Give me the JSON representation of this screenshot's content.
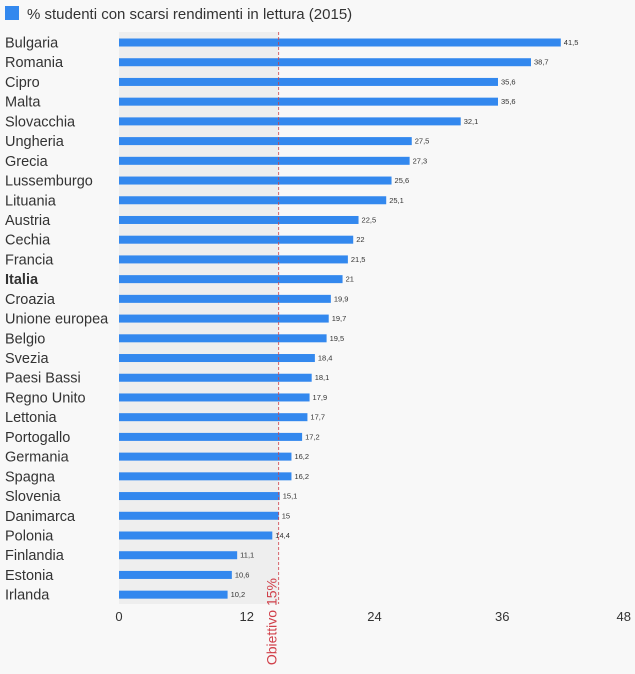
{
  "chart_data": {
    "type": "bar",
    "orientation": "horizontal",
    "legend": {
      "label": "% studenti con scarsi rendimenti in lettura (2015)",
      "color": "#3388ee",
      "placement": "top-left"
    },
    "categories": [
      "Bulgaria",
      "Romania",
      "Cipro",
      "Malta",
      "Slovacchia",
      "Ungheria",
      "Grecia",
      "Lussemburgo",
      "Lituania",
      "Austria",
      "Cechia",
      "Francia",
      "Italia",
      "Croazia",
      "Unione europea",
      "Belgio",
      "Svezia",
      "Paesi Bassi",
      "Regno Unito",
      "Lettonia",
      "Portogallo",
      "Germania",
      "Spagna",
      "Slovenia",
      "Danimarca",
      "Polonia",
      "Finlandia",
      "Estonia",
      "Irlanda"
    ],
    "values": [
      41.5,
      38.7,
      35.6,
      35.6,
      32.1,
      27.5,
      27.3,
      25.6,
      25.1,
      22.5,
      22,
      21.5,
      21,
      19.9,
      19.7,
      19.5,
      18.4,
      18.1,
      17.9,
      17.7,
      17.2,
      16.2,
      16.2,
      15.1,
      15,
      14.4,
      11.1,
      10.6,
      10.2
    ],
    "value_labels": [
      "41,5",
      "38,7",
      "35,6",
      "35,6",
      "32,1",
      "27,5",
      "27,3",
      "25,6",
      "25,1",
      "22,5",
      "22",
      "21,5",
      "21",
      "19,9",
      "19,7",
      "19,5",
      "18,4",
      "18,1",
      "17,9",
      "17,7",
      "17,2",
      "16,2",
      "16,2",
      "15,1",
      "15",
      "14,4",
      "11,1",
      "10,6",
      "10,2"
    ],
    "highlight_category": "Italia",
    "xlim": [
      0,
      48
    ],
    "x_ticks": [
      0,
      12,
      24,
      36,
      48
    ],
    "x_tick_labels": [
      "0",
      "12",
      "24",
      "36",
      "48"
    ],
    "target": {
      "value": 15,
      "label": "Obiettivo 15%",
      "color": "#d0404a"
    },
    "grid": false,
    "colors": {
      "bar": "#3388ee",
      "target_band": "#eeeeee",
      "background": "#f8f8f8",
      "text": "#333333"
    }
  }
}
